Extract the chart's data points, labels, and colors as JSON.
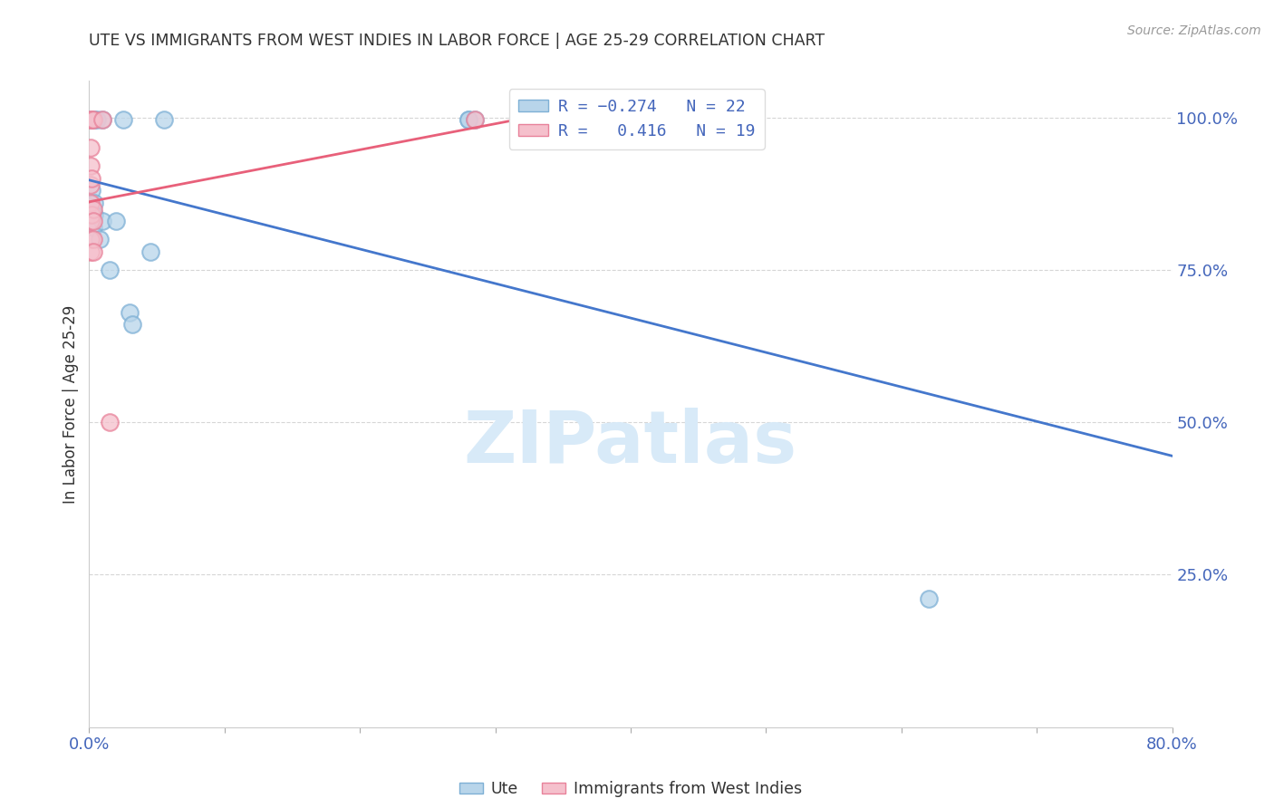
{
  "title": "UTE VS IMMIGRANTS FROM WEST INDIES IN LABOR FORCE | AGE 25-29 CORRELATION CHART",
  "source": "Source: ZipAtlas.com",
  "legend_ute": "Ute",
  "legend_immigrants": "Immigrants from West Indies",
  "r_ute": -0.274,
  "n_ute": 22,
  "r_immigrants": 0.416,
  "n_immigrants": 19,
  "blue_scatter_edge": "#7EB0D5",
  "blue_scatter_face": "#B8D5EA",
  "pink_scatter_edge": "#E8829A",
  "pink_scatter_face": "#F5C0CC",
  "blue_line_color": "#4477CC",
  "pink_line_color": "#E8607A",
  "ylabel_right_labels": [
    "100.0%",
    "75.0%",
    "50.0%",
    "25.0%"
  ],
  "ylabel_right_values": [
    1.0,
    0.75,
    0.5,
    0.25
  ],
  "ylabel": "In Labor Force | Age 25-29",
  "ute_x": [
    0.002,
    0.002,
    0.003,
    0.003,
    0.004,
    0.004,
    0.004,
    0.006,
    0.008,
    0.01,
    0.01,
    0.015,
    0.02,
    0.025,
    0.03,
    0.032,
    0.045,
    0.055,
    0.28,
    0.28,
    0.285,
    0.62
  ],
  "ute_y": [
    0.997,
    0.88,
    0.84,
    0.82,
    0.997,
    0.86,
    0.84,
    0.997,
    0.8,
    0.997,
    0.83,
    0.75,
    0.83,
    0.997,
    0.68,
    0.66,
    0.78,
    0.997,
    0.997,
    0.997,
    0.997,
    0.21
  ],
  "immigrants_x": [
    0.001,
    0.001,
    0.001,
    0.001,
    0.001,
    0.001,
    0.001,
    0.001,
    0.002,
    0.002,
    0.002,
    0.003,
    0.003,
    0.003,
    0.003,
    0.003,
    0.01,
    0.015,
    0.285
  ],
  "immigrants_y": [
    0.997,
    0.95,
    0.92,
    0.89,
    0.86,
    0.83,
    0.8,
    0.78,
    0.997,
    0.9,
    0.84,
    0.997,
    0.85,
    0.83,
    0.8,
    0.78,
    0.997,
    0.5,
    0.997
  ],
  "xmin": 0.0,
  "xmax": 0.8,
  "ymin": 0.0,
  "ymax": 1.06,
  "grid_color": "#CCCCCC",
  "background_color": "#FFFFFF",
  "watermark_text": "ZIPatlas",
  "watermark_color": "#D8EAF8",
  "tick_label_color": "#4466BB",
  "axis_label_color": "#333333",
  "title_color": "#333333",
  "source_color": "#999999"
}
